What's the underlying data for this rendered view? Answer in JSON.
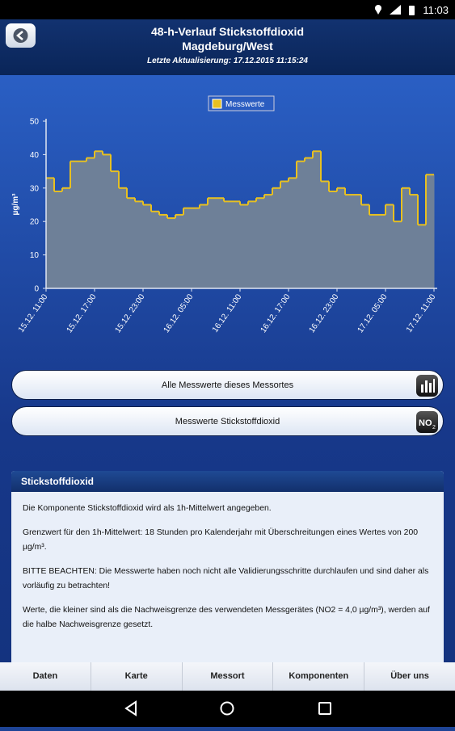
{
  "status_bar": {
    "time": "11:03"
  },
  "header": {
    "title_line1": "48-h-Verlauf Stickstoffdioxid",
    "title_line2": "Magdeburg/West",
    "update": "Letzte Aktualisierung: 17.12.2015 11:15:24"
  },
  "chart": {
    "type": "line",
    "step": true,
    "y_label": "µg/m³",
    "series": [
      {
        "name": "Messwerte",
        "color": "#e8c020",
        "values": [
          33,
          29,
          30,
          38,
          38,
          39,
          41,
          40,
          35,
          30,
          27,
          26,
          25,
          23,
          22,
          21,
          22,
          24,
          24,
          25,
          27,
          27,
          26,
          26,
          25,
          26,
          27,
          28,
          30,
          32,
          33,
          38,
          39,
          41,
          32,
          29,
          30,
          28,
          28,
          25,
          22,
          22,
          25,
          20,
          30,
          28,
          19,
          34
        ]
      }
    ],
    "ylim": [
      0,
      50
    ],
    "yticks": [
      0,
      10,
      20,
      30,
      40,
      50
    ],
    "xtick_labels": [
      "15.12. 11:00",
      "15.12. 17:00",
      "15.12. 23:00",
      "16.12. 05:00",
      "16.12. 11:00",
      "16.12. 17:00",
      "16.12. 23:00",
      "17.12. 05:00",
      "17.12. 11:00"
    ]
  },
  "buttons": [
    "Alle Messwerte dieses Messortes",
    "Messwerte Stickstoffdioxid"
  ],
  "info": {
    "title": "Stickstoffdioxid",
    "paragraphs": [
      "Die Komponente Stickstoffdioxid wird als 1h-Mittelwert angegeben.",
      "Grenzwert für den 1h-Mittelwert: 18 Stunden pro Kalenderjahr mit Überschreitungen eines Wertes von 200 µg/m³.",
      "BITTE BEACHTEN: Die Messwerte haben noch nicht alle Validierungsschritte durchlaufen und sind daher als vorläufig zu betrachten!",
      "Werte, die kleiner sind als die Nachweisgrenze des verwendeten Messgerätes (NO2 = 4,0 µg/m³), werden auf die halbe Nachweisgrenze gesetzt."
    ]
  },
  "tabs": [
    "Daten",
    "Karte",
    "Messort",
    "Komponenten",
    "Über uns"
  ]
}
